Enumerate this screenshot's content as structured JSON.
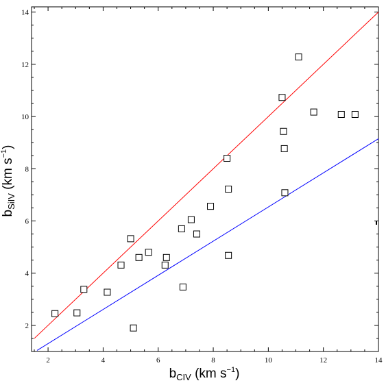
{
  "chart_data": {
    "type": "scatter",
    "xlabel": {
      "base": "b",
      "sub": "CIV",
      "unit_open": " (km s",
      "sup": "−1",
      "unit_close": ")"
    },
    "ylabel": {
      "base": "b",
      "sub": "SiIV",
      "unit_open": " (km s",
      "sup": "−1",
      "unit_close": ")"
    },
    "xlim": [
      1.4,
      14
    ],
    "ylim": [
      1.0,
      14.2
    ],
    "x_ticks": [
      "2",
      "4",
      "6",
      "8",
      "10",
      "12",
      "14"
    ],
    "y_ticks": [
      "2",
      "4",
      "6",
      "8",
      "10",
      "12",
      "14"
    ],
    "grid": false,
    "legend": "none",
    "points": [
      {
        "x": 2.25,
        "y": 2.45
      },
      {
        "x": 3.05,
        "y": 2.48
      },
      {
        "x": 3.3,
        "y": 3.38
      },
      {
        "x": 4.15,
        "y": 3.27
      },
      {
        "x": 4.65,
        "y": 4.31
      },
      {
        "x": 5.0,
        "y": 5.32
      },
      {
        "x": 5.1,
        "y": 1.9
      },
      {
        "x": 5.3,
        "y": 4.6
      },
      {
        "x": 5.65,
        "y": 4.8
      },
      {
        "x": 6.25,
        "y": 4.31
      },
      {
        "x": 6.3,
        "y": 4.6
      },
      {
        "x": 6.85,
        "y": 5.7
      },
      {
        "x": 6.9,
        "y": 3.47
      },
      {
        "x": 7.2,
        "y": 6.05
      },
      {
        "x": 7.4,
        "y": 5.5
      },
      {
        "x": 7.9,
        "y": 6.56
      },
      {
        "x": 8.5,
        "y": 8.4
      },
      {
        "x": 8.55,
        "y": 7.22
      },
      {
        "x": 8.55,
        "y": 4.68
      },
      {
        "x": 10.5,
        "y": 10.73
      },
      {
        "x": 10.55,
        "y": 9.43
      },
      {
        "x": 10.58,
        "y": 8.77
      },
      {
        "x": 10.6,
        "y": 7.08
      },
      {
        "x": 11.1,
        "y": 12.28
      },
      {
        "x": 11.65,
        "y": 10.17
      },
      {
        "x": 12.65,
        "y": 10.08
      },
      {
        "x": 13.15,
        "y": 10.08
      }
    ],
    "lines": [
      {
        "color": "#ff0000",
        "x0": 1.5,
        "y0": 1.5,
        "x1": 14,
        "y1": 14
      },
      {
        "color": "#0000ff",
        "x0": 1.6,
        "y0": 1.04,
        "x1": 14,
        "y1": 9.15
      }
    ],
    "marker_color": "#000000"
  }
}
